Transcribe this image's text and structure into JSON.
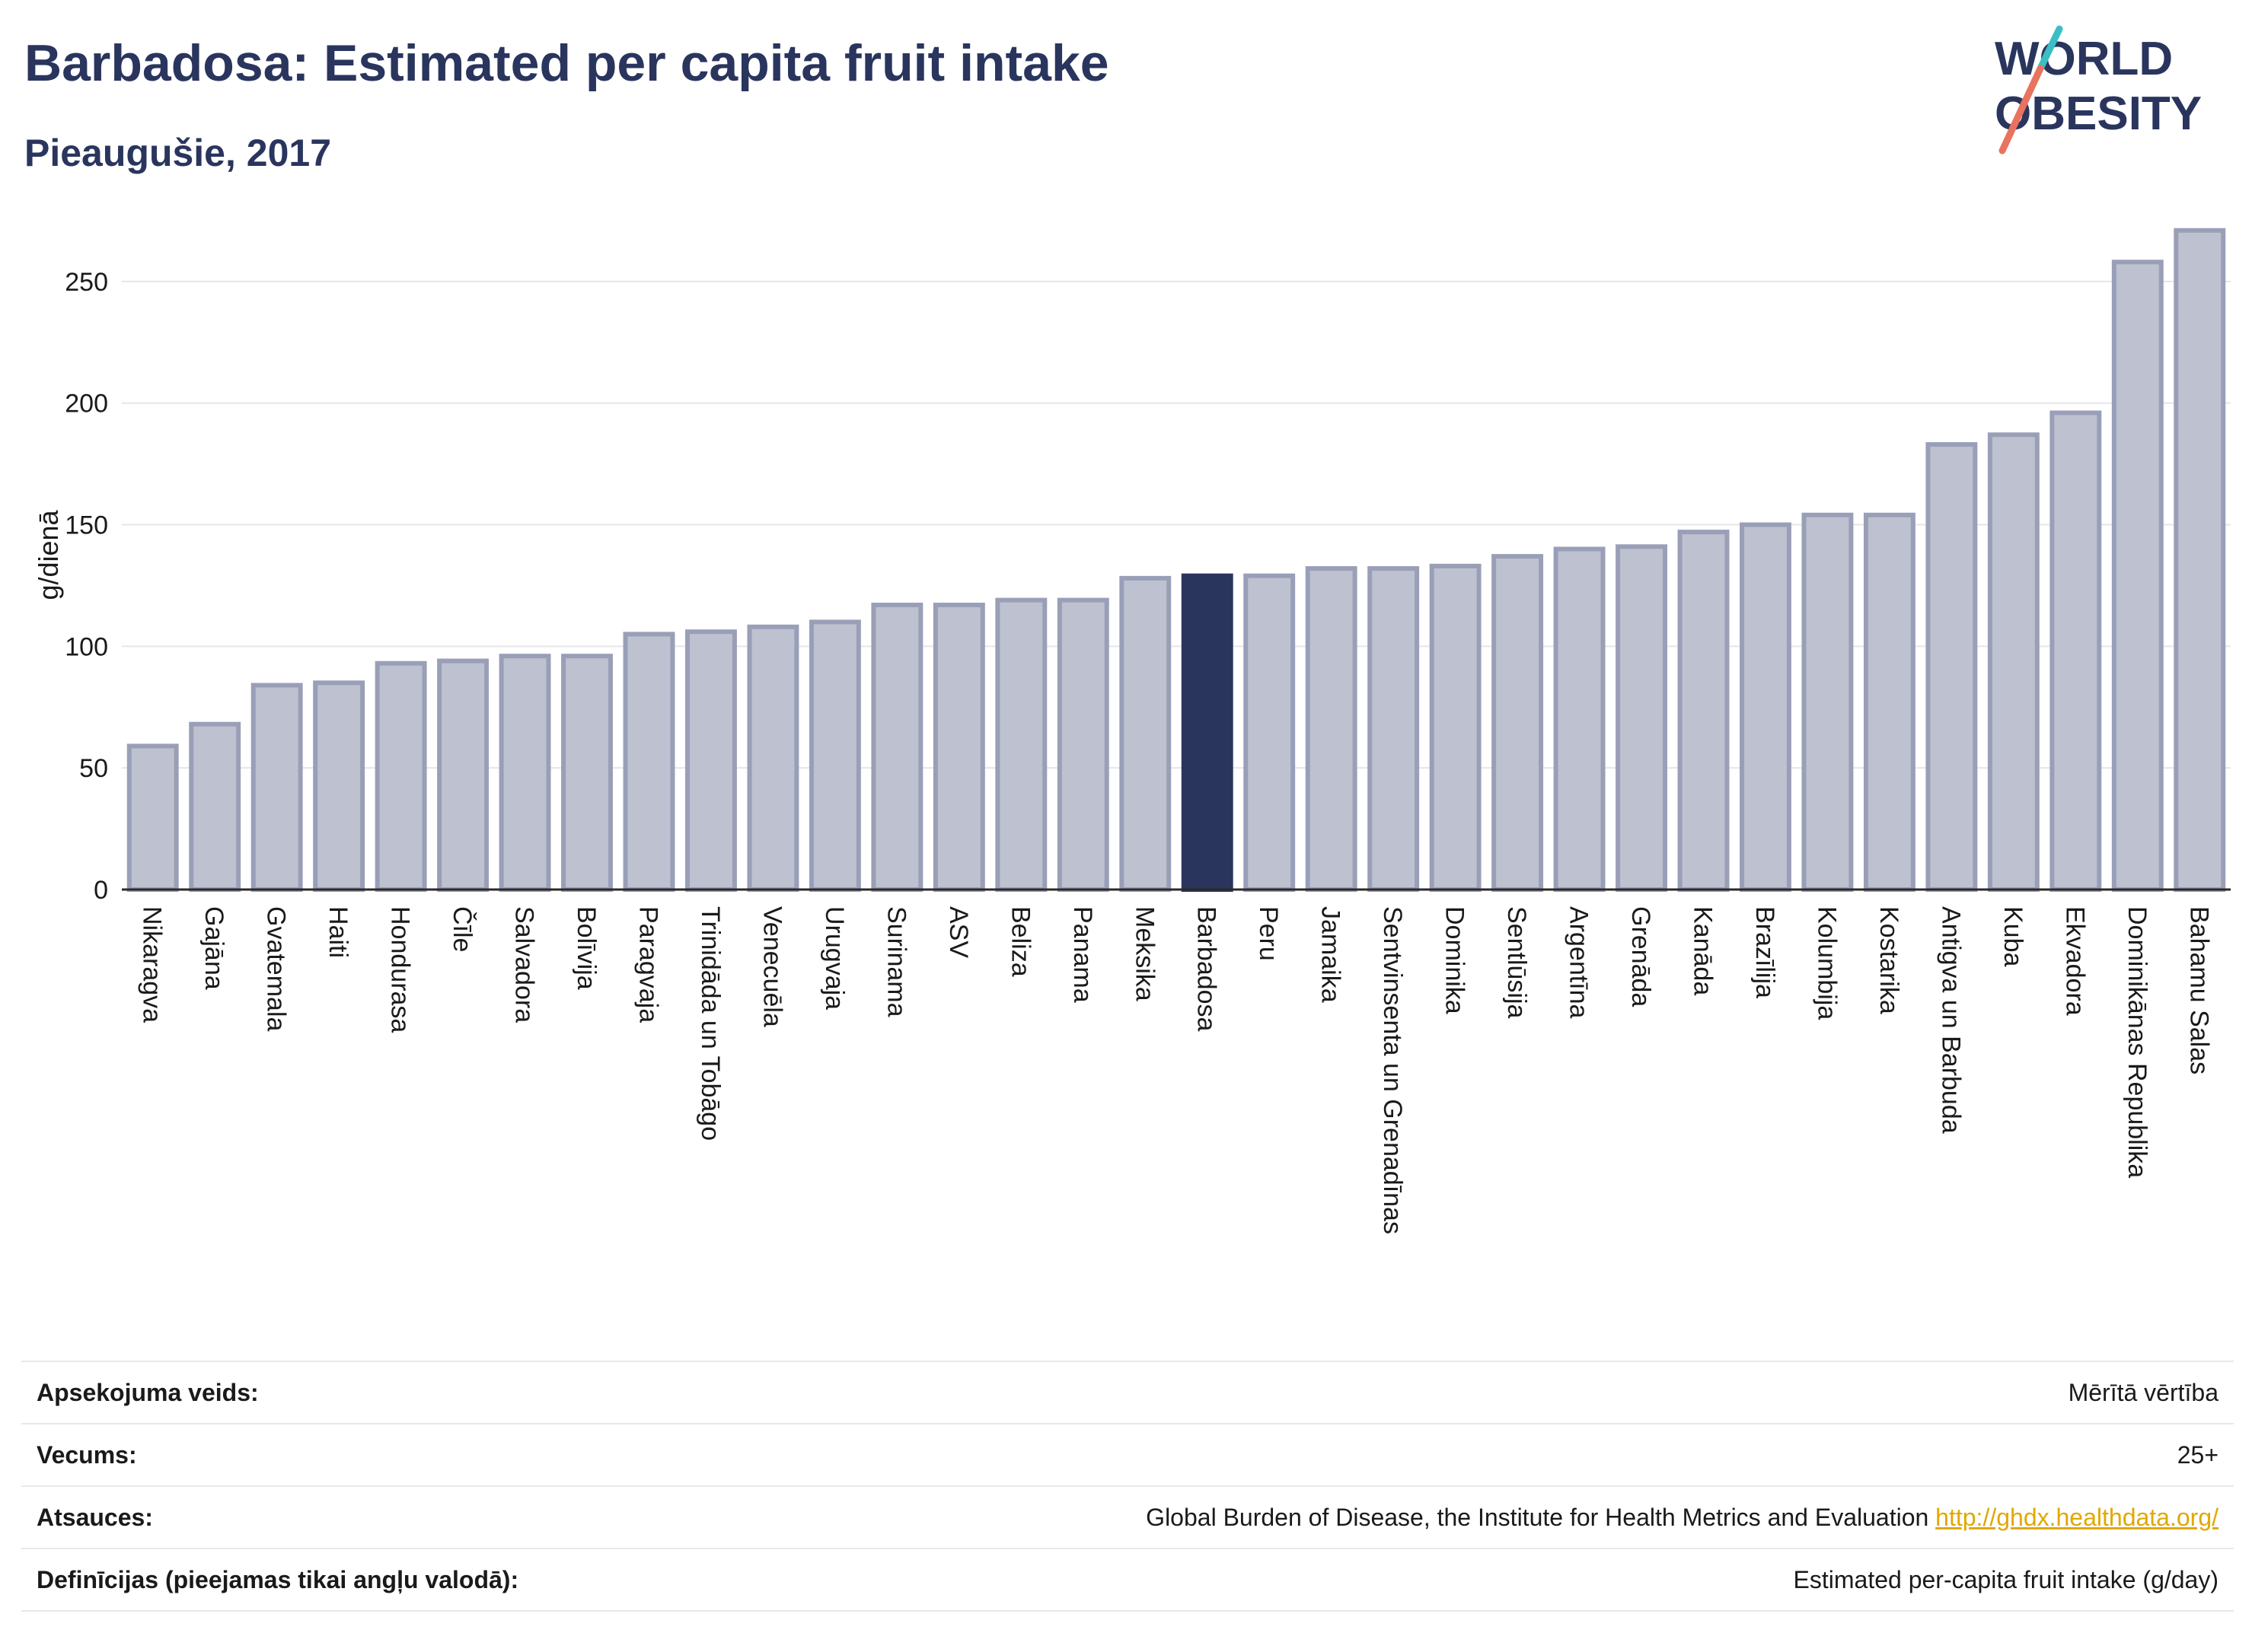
{
  "header": {
    "title": "Barbadosa: Estimated per capita fruit intake",
    "subtitle": "Pieaugušie, 2017"
  },
  "logo": {
    "line1": "WORLD",
    "line2": "OBESITY"
  },
  "colors": {
    "title": "#2a355e",
    "bar_default_fill": "#bec1cf",
    "bar_default_stroke": "#9a9fb8",
    "bar_highlight": "#2a355e",
    "grid": "#e6e6ea",
    "link": "#e0a800",
    "logo_teal": "#3bbfc4",
    "logo_coral": "#e8735e"
  },
  "chart_data": {
    "type": "bar",
    "ylabel": "g/dienā",
    "ylim": [
      0,
      275
    ],
    "yticks": [
      0,
      50,
      100,
      150,
      200,
      250
    ],
    "grid": true,
    "highlight": "Barbadosa",
    "categories": [
      "Nikaragva",
      "Gajāna",
      "Gvatemala",
      "Haiti",
      "Hondurasa",
      "Čīle",
      "Salvadora",
      "Bolīvija",
      "Paragvaja",
      "Trinidāda un Tobāgo",
      "Venecuēla",
      "Urugvaja",
      "Surinama",
      "ASV",
      "Beliza",
      "Panama",
      "Meksika",
      "Barbadosa",
      "Peru",
      "Jamaika",
      "Sentvinsenta un Grenadīnas",
      "Dominika",
      "Sentlūsija",
      "Argentīna",
      "Grenāda",
      "Kanāda",
      "Brazīlija",
      "Kolumbija",
      "Kostarika",
      "Antigva un Barbuda",
      "Kuba",
      "Ekvadora",
      "Dominikānas Republika",
      "Bahamu Salas"
    ],
    "values": [
      59,
      68,
      84,
      85,
      93,
      94,
      96,
      96,
      105,
      106,
      108,
      110,
      117,
      117,
      119,
      119,
      128,
      129,
      129,
      132,
      132,
      133,
      137,
      140,
      141,
      147,
      150,
      154,
      154,
      183,
      187,
      196,
      258,
      271
    ]
  },
  "meta": [
    {
      "key": "Apsekojuma veids:",
      "value": "Mērītā vērtība"
    },
    {
      "key": "Vecums:",
      "value": "25+"
    },
    {
      "key": "Atsauces:",
      "value": "Global Burden of Disease, the Institute for Health Metrics and Evaluation",
      "link": "http://ghdx.healthdata.org/"
    },
    {
      "key": "Definīcijas (pieejamas tikai angļu valodā):",
      "value": "Estimated per-capita fruit intake (g/day)"
    }
  ]
}
